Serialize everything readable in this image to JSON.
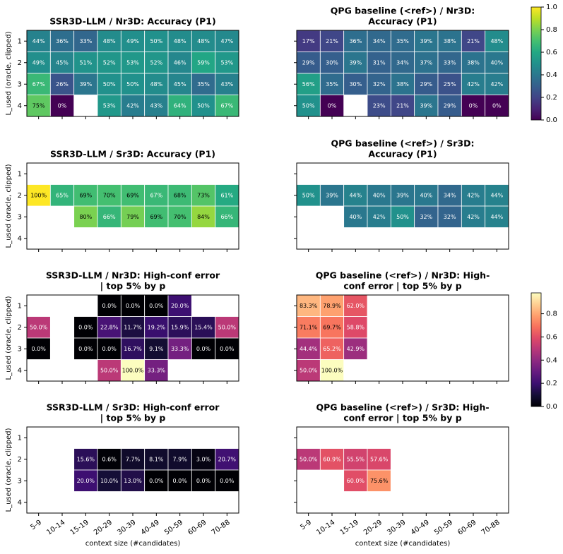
{
  "chart_data": [
    {
      "type": "heatmap",
      "title": [
        "SSR3D-LLM / Nr3D: Accuracy (P1)"
      ],
      "cmap": "viridis",
      "ylabel": "L_used (oracle, clipped)",
      "y_categories": [
        "1",
        "2",
        "3",
        "4"
      ],
      "values": [
        [
          0.44,
          0.36,
          0.33,
          0.48,
          0.49,
          0.5,
          0.48,
          0.48,
          0.47
        ],
        [
          0.49,
          0.45,
          0.51,
          0.52,
          0.53,
          0.52,
          0.46,
          0.59,
          0.53
        ],
        [
          0.67,
          0.26,
          0.39,
          0.5,
          0.5,
          0.48,
          0.45,
          0.35,
          0.43
        ],
        [
          0.75,
          0,
          null,
          0.53,
          0.42,
          0.43,
          0.64,
          0.5,
          0.67
        ]
      ],
      "value_labels": [
        [
          "44%",
          "36%",
          "33%",
          "48%",
          "49%",
          "50%",
          "48%",
          "48%",
          "47%"
        ],
        [
          "49%",
          "45%",
          "51%",
          "52%",
          "53%",
          "52%",
          "46%",
          "59%",
          "53%"
        ],
        [
          "67%",
          "26%",
          "39%",
          "50%",
          "50%",
          "48%",
          "45%",
          "35%",
          "43%"
        ],
        [
          "75%",
          "0%",
          null,
          "53%",
          "42%",
          "43%",
          "64%",
          "50%",
          "67%"
        ]
      ]
    },
    {
      "type": "heatmap",
      "title": [
        "QPG baseline (<ref>) / Nr3D:",
        "Accuracy (P1)"
      ],
      "cmap": "viridis",
      "values": [
        [
          0.17,
          0.21,
          0.36,
          0.34,
          0.35,
          0.39,
          0.38,
          0.21,
          0.48
        ],
        [
          0.29,
          0.3,
          0.39,
          0.31,
          0.34,
          0.37,
          0.33,
          0.38,
          0.4
        ],
        [
          0.56,
          0.35,
          0.3,
          0.32,
          0.38,
          0.29,
          0.25,
          0.42,
          0.42
        ],
        [
          0.5,
          0,
          null,
          0.23,
          0.21,
          0.39,
          0.29,
          0,
          0
        ]
      ],
      "value_labels": [
        [
          "17%",
          "21%",
          "36%",
          "34%",
          "35%",
          "39%",
          "38%",
          "21%",
          "48%"
        ],
        [
          "29%",
          "30%",
          "39%",
          "31%",
          "34%",
          "37%",
          "33%",
          "38%",
          "40%"
        ],
        [
          "56%",
          "35%",
          "30%",
          "32%",
          "38%",
          "29%",
          "25%",
          "42%",
          "42%"
        ],
        [
          "50%",
          "0%",
          null,
          "23%",
          "21%",
          "39%",
          "29%",
          "0%",
          "0%"
        ]
      ],
      "colorbar": {
        "zlim": [
          0,
          1
        ],
        "zticks": [
          {
            "value": 0,
            "label": "0.0"
          },
          {
            "value": 0.2,
            "label": "0.2"
          },
          {
            "value": 0.4,
            "label": "0.4"
          },
          {
            "value": 0.6,
            "label": "0.6"
          },
          {
            "value": 0.8,
            "label": "0.8"
          },
          {
            "value": 1,
            "label": "1.0"
          }
        ]
      }
    },
    {
      "type": "heatmap",
      "title": [
        "SSR3D-LLM / Sr3D: Accuracy (P1)"
      ],
      "cmap": "viridis",
      "ylabel": "L_used (oracle, clipped)",
      "y_categories": [
        "1",
        "2",
        "3",
        "4"
      ],
      "values": [
        [
          null,
          null,
          null,
          null,
          null,
          null,
          null,
          null,
          null
        ],
        [
          1,
          0.65,
          0.69,
          0.7,
          0.69,
          0.67,
          0.68,
          0.73,
          0.61
        ],
        [
          null,
          null,
          0.8,
          0.66,
          0.79,
          0.69,
          0.7,
          0.84,
          0.66
        ],
        [
          null,
          null,
          null,
          null,
          null,
          null,
          null,
          null,
          null
        ]
      ],
      "value_labels": [
        [
          null,
          null,
          null,
          null,
          null,
          null,
          null,
          null,
          null
        ],
        [
          "100%",
          "65%",
          "69%",
          "70%",
          "69%",
          "67%",
          "68%",
          "73%",
          "61%"
        ],
        [
          null,
          null,
          "80%",
          "66%",
          "79%",
          "69%",
          "70%",
          "84%",
          "66%"
        ],
        [
          null,
          null,
          null,
          null,
          null,
          null,
          null,
          null,
          null
        ]
      ]
    },
    {
      "type": "heatmap",
      "title": [
        "QPG baseline (<ref>) / Sr3D:",
        "Accuracy (P1)"
      ],
      "cmap": "viridis",
      "values": [
        [
          null,
          null,
          null,
          null,
          null,
          null,
          null,
          null,
          null
        ],
        [
          0.5,
          0.39,
          0.44,
          0.4,
          0.39,
          0.4,
          0.34,
          0.42,
          0.44
        ],
        [
          null,
          null,
          0.4,
          0.42,
          0.5,
          0.32,
          0.32,
          0.42,
          0.44
        ],
        [
          null,
          null,
          null,
          null,
          null,
          null,
          null,
          null,
          null
        ]
      ],
      "value_labels": [
        [
          null,
          null,
          null,
          null,
          null,
          null,
          null,
          null,
          null
        ],
        [
          "50%",
          "39%",
          "44%",
          "40%",
          "39%",
          "40%",
          "34%",
          "42%",
          "44%"
        ],
        [
          null,
          null,
          "40%",
          "42%",
          "50%",
          "32%",
          "32%",
          "42%",
          "44%"
        ],
        [
          null,
          null,
          null,
          null,
          null,
          null,
          null,
          null,
          null
        ]
      ]
    },
    {
      "type": "heatmap",
      "title": [
        "SSR3D-LLM / Nr3D: High-conf error",
        "| top 5% by p"
      ],
      "cmap": "magma",
      "ylabel": "L_used (oracle, clipped)",
      "y_categories": [
        "1",
        "2",
        "3",
        "4"
      ],
      "values": [
        [
          null,
          null,
          null,
          0,
          0,
          0,
          0.2,
          null,
          null
        ],
        [
          0.5,
          null,
          0,
          0.228,
          0.117,
          0.192,
          0.159,
          0.154,
          0.5
        ],
        [
          0,
          null,
          0,
          0,
          0.167,
          0.091,
          0.333,
          0,
          0
        ],
        [
          null,
          null,
          null,
          0.5,
          1,
          0.333,
          null,
          null,
          null
        ]
      ],
      "value_labels": [
        [
          null,
          null,
          null,
          "0.0%",
          "0.0%",
          "0.0%",
          "20.0%",
          null,
          null
        ],
        [
          "50.0%",
          null,
          "0.0%",
          "22.8%",
          "11.7%",
          "19.2%",
          "15.9%",
          "15.4%",
          "50.0%"
        ],
        [
          "0.0%",
          null,
          "0.0%",
          "0.0%",
          "16.7%",
          "9.1%",
          "33.3%",
          "0.0%",
          "0.0%"
        ],
        [
          null,
          null,
          null,
          "50.0%",
          "100.0%",
          "33.3%",
          null,
          null,
          null
        ]
      ]
    },
    {
      "type": "heatmap",
      "title": [
        "QPG baseline (<ref>) / Nr3D: High-",
        "conf error | top 5% by p"
      ],
      "cmap": "magma",
      "values": [
        [
          0.833,
          0.789,
          0.62,
          null,
          null,
          null,
          null,
          null,
          null
        ],
        [
          0.711,
          0.697,
          0.588,
          null,
          null,
          null,
          null,
          null,
          null
        ],
        [
          0.444,
          0.652,
          0.429,
          null,
          null,
          null,
          null,
          null,
          null
        ],
        [
          0.5,
          1,
          null,
          null,
          null,
          null,
          null,
          null,
          null
        ]
      ],
      "value_labels": [
        [
          "83.3%",
          "78.9%",
          "62.0%",
          null,
          null,
          null,
          null,
          null,
          null
        ],
        [
          "71.1%",
          "69.7%",
          "58.8%",
          null,
          null,
          null,
          null,
          null,
          null
        ],
        [
          "44.4%",
          "65.2%",
          "42.9%",
          null,
          null,
          null,
          null,
          null,
          null
        ],
        [
          "50.0%",
          "100.0%",
          null,
          null,
          null,
          null,
          null,
          null,
          null
        ]
      ],
      "colorbar": {
        "zlim": [
          0,
          0.98
        ],
        "zticks": [
          {
            "value": 0,
            "label": "0.0"
          },
          {
            "value": 0.2,
            "label": "0.2"
          },
          {
            "value": 0.4,
            "label": "0.4"
          },
          {
            "value": 0.6,
            "label": "0.6"
          },
          {
            "value": 0.8,
            "label": "0.8"
          }
        ]
      }
    },
    {
      "type": "heatmap",
      "title": [
        "SSR3D-LLM / Sr3D: High-conf error",
        "| top 5% by p"
      ],
      "cmap": "magma",
      "ylabel": "L_used (oracle, clipped)",
      "y_categories": [
        "1",
        "2",
        "3",
        "4"
      ],
      "xlabel": "context size (#candidates)",
      "x_categories": [
        "5-9",
        "10-14",
        "15-19",
        "20-29",
        "30-39",
        "40-49",
        "50-59",
        "60-69",
        "70-88"
      ],
      "values": [
        [
          null,
          null,
          null,
          null,
          null,
          null,
          null,
          null,
          null
        ],
        [
          null,
          null,
          0.156,
          0.006,
          0.077,
          0.081,
          0.079,
          0.03,
          0.207
        ],
        [
          null,
          null,
          0.2,
          0.1,
          0.13,
          0,
          0,
          0,
          0
        ],
        [
          null,
          null,
          null,
          null,
          null,
          null,
          null,
          null,
          null
        ]
      ],
      "value_labels": [
        [
          null,
          null,
          null,
          null,
          null,
          null,
          null,
          null,
          null
        ],
        [
          null,
          null,
          "15.6%",
          "0.6%",
          "7.7%",
          "8.1%",
          "7.9%",
          "3.0%",
          "20.7%"
        ],
        [
          null,
          null,
          "20.0%",
          "10.0%",
          "13.0%",
          "0.0%",
          "0.0%",
          "0.0%",
          "0.0%"
        ],
        [
          null,
          null,
          null,
          null,
          null,
          null,
          null,
          null,
          null
        ]
      ]
    },
    {
      "type": "heatmap",
      "title": [
        "QPG baseline (<ref>) / Sr3D: High-",
        "conf error | top 5% by p"
      ],
      "cmap": "magma",
      "xlabel": "context size (#candidates)",
      "x_categories": [
        "5-9",
        "10-14",
        "15-19",
        "20-29",
        "30-39",
        "40-49",
        "50-59",
        "60-69",
        "70-88"
      ],
      "values": [
        [
          null,
          null,
          null,
          null,
          null,
          null,
          null,
          null,
          null
        ],
        [
          0.5,
          0.609,
          0.555,
          0.576,
          null,
          null,
          null,
          null,
          null
        ],
        [
          null,
          null,
          0.6,
          0.756,
          null,
          null,
          null,
          null,
          null
        ],
        [
          null,
          null,
          null,
          null,
          null,
          null,
          null,
          null,
          null
        ]
      ],
      "value_labels": [
        [
          null,
          null,
          null,
          null,
          null,
          null,
          null,
          null,
          null
        ],
        [
          "50.0%",
          "60.9%",
          "55.5%",
          "57.6%",
          null,
          null,
          null,
          null,
          null
        ],
        [
          null,
          null,
          "60.0%",
          "75.6%",
          null,
          null,
          null,
          null,
          null
        ],
        [
          null,
          null,
          null,
          null,
          null,
          null,
          null,
          null,
          null
        ]
      ]
    }
  ]
}
